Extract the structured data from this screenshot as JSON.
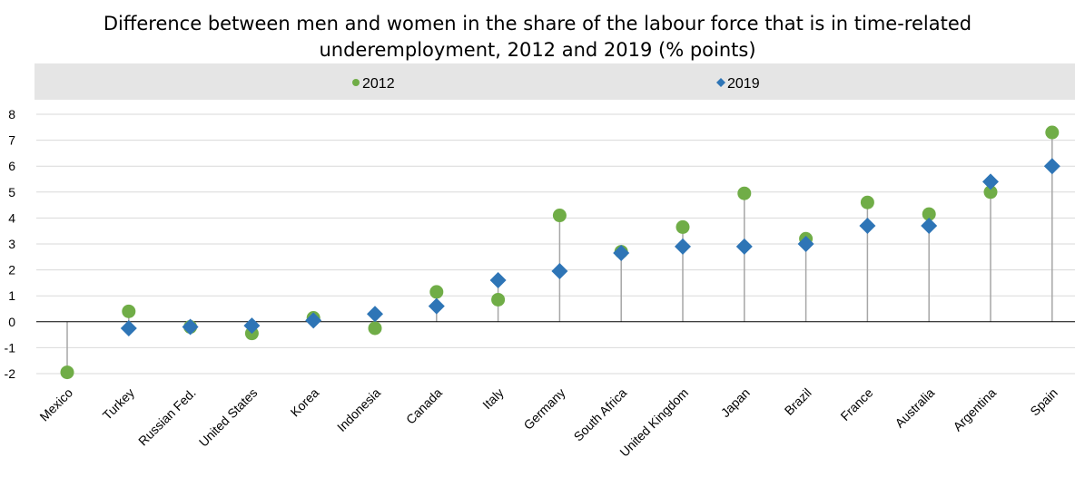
{
  "chart_data": {
    "type": "scatter",
    "title_line1": "Difference between men and women in the share of the labour force that is in time-related",
    "title_line2": "underemployment, 2012 and 2019 (% points)",
    "categories": [
      "Mexico",
      "Turkey",
      "Russian Fed.",
      "United States",
      "Korea",
      "Indonesia",
      "Canada",
      "Italy",
      "Germany",
      "South Africa",
      "United Kingdom",
      "Japan",
      "Brazil",
      "France",
      "Australia",
      "Argentina",
      "Spain"
    ],
    "series": [
      {
        "name": "2012",
        "marker": "circle",
        "color": "#70ad47",
        "values": [
          -1.95,
          0.4,
          -0.2,
          -0.45,
          0.15,
          -0.25,
          1.15,
          0.85,
          4.1,
          2.7,
          3.65,
          4.95,
          3.2,
          4.6,
          4.15,
          5.0,
          7.3
        ]
      },
      {
        "name": "2019",
        "marker": "diamond",
        "color": "#2e75b6",
        "values": [
          null,
          -0.25,
          -0.2,
          -0.15,
          0.05,
          0.3,
          0.6,
          1.6,
          1.95,
          2.65,
          2.9,
          2.9,
          3.0,
          3.7,
          3.7,
          5.4,
          6.0
        ]
      }
    ],
    "yticks": [
      "-2",
      "-1",
      "0",
      "1",
      "2",
      "3",
      "4",
      "5",
      "6",
      "7",
      "8"
    ],
    "ylim": [
      -2,
      8
    ],
    "grid": true,
    "legend_position": "top"
  }
}
